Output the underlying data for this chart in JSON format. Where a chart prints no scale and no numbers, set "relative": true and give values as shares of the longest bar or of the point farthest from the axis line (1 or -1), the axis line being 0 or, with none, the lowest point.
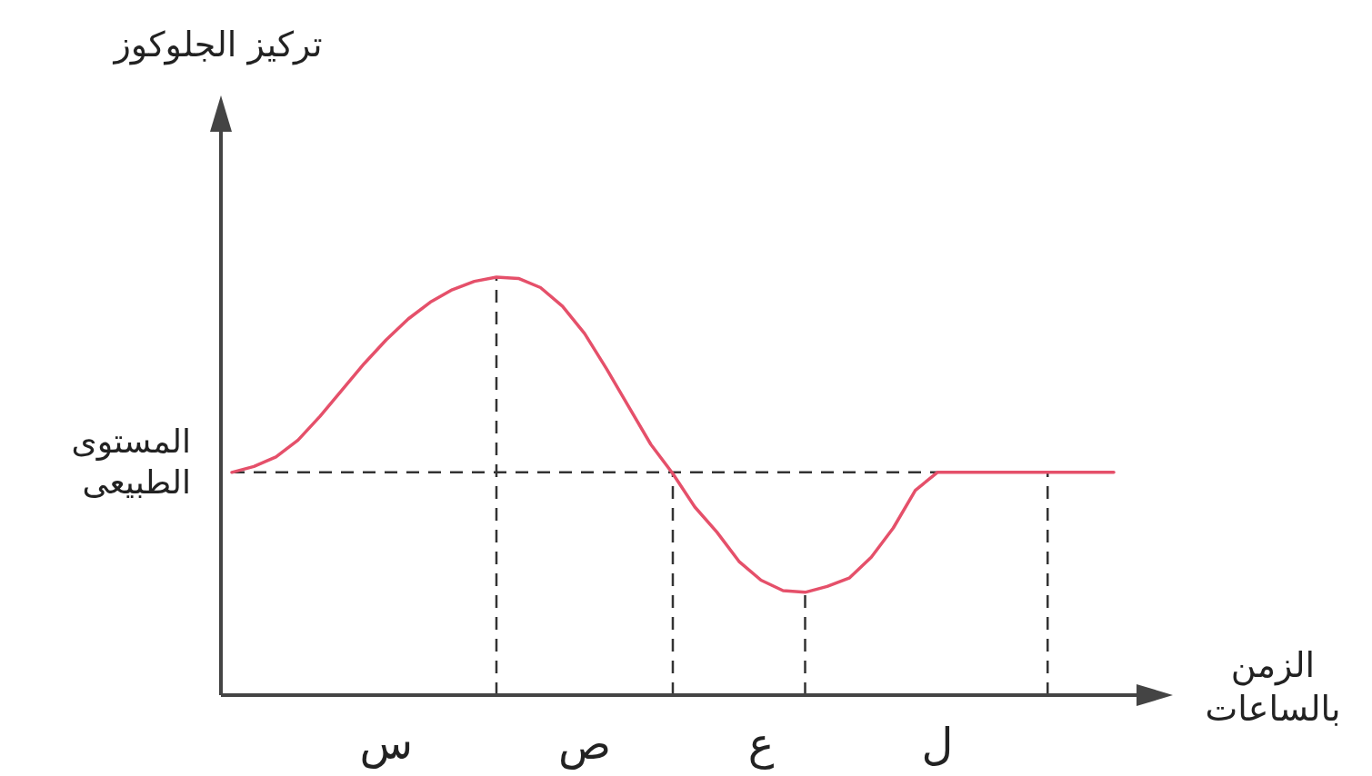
{
  "chart_data": {
    "type": "line",
    "relative": true,
    "annotations": [
      "تركيز الجلوكوز"
    ],
    "xlabel": "الزمن\nبالساعات",
    "categories": [
      null,
      null,
      null,
      null,
      null,
      null,
      null,
      "س",
      null,
      null,
      null,
      null,
      null,
      null,
      null,
      null,
      "ص",
      null,
      null,
      null,
      null,
      null,
      null,
      null,
      "ع",
      null,
      null,
      null,
      null,
      null,
      null,
      null,
      "ل",
      null,
      null,
      null,
      null,
      null,
      null,
      null,
      null
    ],
    "series": [
      {
        "color": "#e5506a",
        "values": [
          0.533,
          0.547,
          0.57,
          0.61,
          0.667,
          0.73,
          0.793,
          0.85,
          0.9,
          0.94,
          0.97,
          0.99,
          1,
          0.997,
          0.975,
          0.93,
          0.865,
          0.78,
          0.69,
          0.6,
          0.53,
          0.45,
          0.39,
          0.32,
          0.275,
          0.25,
          0.246,
          0.26,
          0.28,
          0.33,
          0.4,
          0.49,
          0.533,
          0.533,
          0.533,
          0.533,
          0.533,
          0.533,
          0.533,
          0.533,
          0.533
        ]
      }
    ],
    "ref_lines": [
      {
        "axis": "y",
        "value": 0.533,
        "label": "المستوى\nالطبيعى",
        "line_style": "dashed"
      }
    ]
  }
}
